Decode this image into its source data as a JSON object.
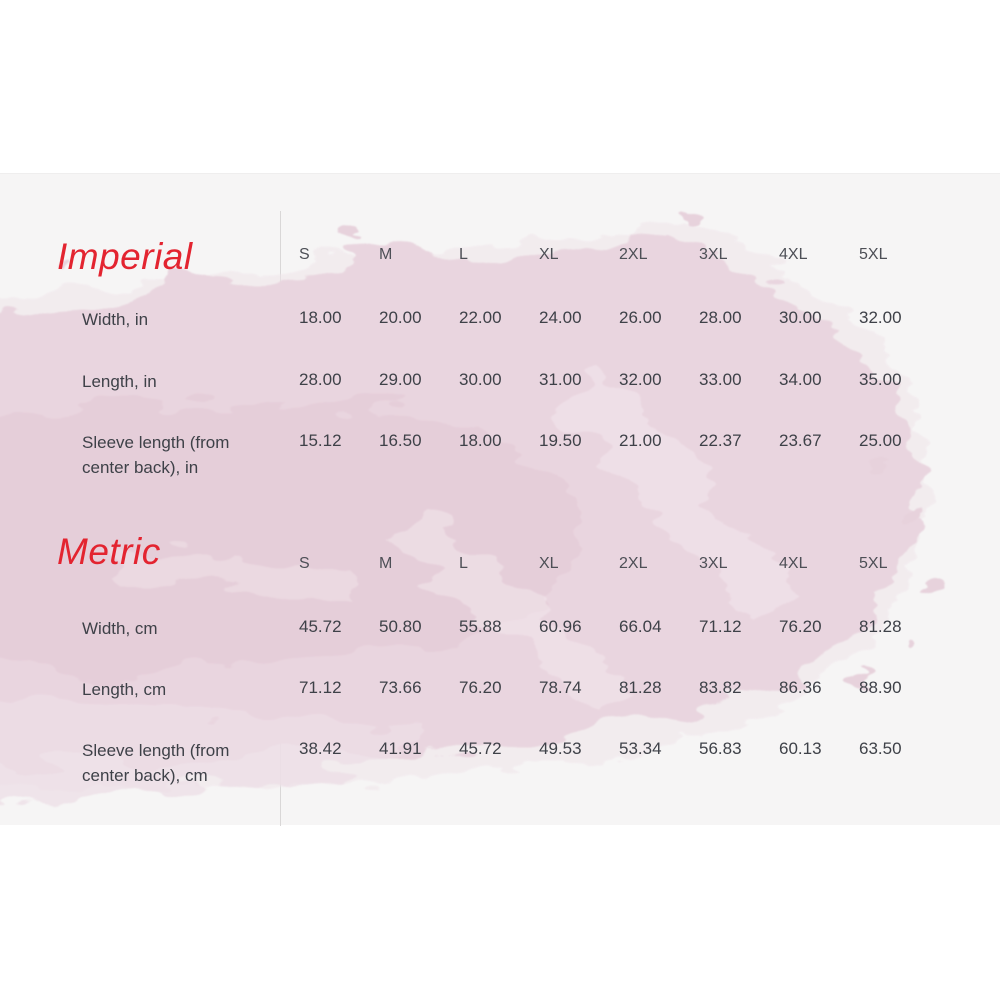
{
  "colors": {
    "page_background": "#ffffff",
    "panel_background": "#f6f5f5",
    "heading_red": "#e32430",
    "table_text": "#3e4148",
    "watercolor_pink": "#e9d5df",
    "divider_gray": "#d9d7d7"
  },
  "sections": [
    {
      "title": "Imperial",
      "sizes": [
        "S",
        "M",
        "L",
        "XL",
        "2XL",
        "3XL",
        "4XL",
        "5XL"
      ],
      "rows": [
        {
          "label": "Width, in",
          "values": [
            "18.00",
            "20.00",
            "22.00",
            "24.00",
            "26.00",
            "28.00",
            "30.00",
            "32.00"
          ]
        },
        {
          "label": "Length, in",
          "values": [
            "28.00",
            "29.00",
            "30.00",
            "31.00",
            "32.00",
            "33.00",
            "34.00",
            "35.00"
          ]
        },
        {
          "label": "Sleeve length (from center back), in",
          "values": [
            "15.12",
            "16.50",
            "18.00",
            "19.50",
            "21.00",
            "22.37",
            "23.67",
            "25.00"
          ]
        }
      ]
    },
    {
      "title": "Metric",
      "sizes": [
        "S",
        "M",
        "L",
        "XL",
        "2XL",
        "3XL",
        "4XL",
        "5XL"
      ],
      "rows": [
        {
          "label": "Width, cm",
          "values": [
            "45.72",
            "50.80",
            "55.88",
            "60.96",
            "66.04",
            "71.12",
            "76.20",
            "81.28"
          ]
        },
        {
          "label": "Length, cm",
          "values": [
            "71.12",
            "73.66",
            "76.20",
            "78.74",
            "81.28",
            "83.82",
            "86.36",
            "88.90"
          ]
        },
        {
          "label": "Sleeve length (from center back), cm",
          "values": [
            "38.42",
            "41.91",
            "45.72",
            "49.53",
            "53.34",
            "56.83",
            "60.13",
            "63.50"
          ]
        }
      ]
    }
  ],
  "chart_data": [
    {
      "type": "table",
      "title": "Imperial",
      "columns": [
        "",
        "S",
        "M",
        "L",
        "XL",
        "2XL",
        "3XL",
        "4XL",
        "5XL"
      ],
      "rows": [
        [
          "Width, in",
          18.0,
          20.0,
          22.0,
          24.0,
          26.0,
          28.0,
          30.0,
          32.0
        ],
        [
          "Length, in",
          28.0,
          29.0,
          30.0,
          31.0,
          32.0,
          33.0,
          34.0,
          35.0
        ],
        [
          "Sleeve length (from center back), in",
          15.12,
          16.5,
          18.0,
          19.5,
          21.0,
          22.37,
          23.67,
          25.0
        ]
      ]
    },
    {
      "type": "table",
      "title": "Metric",
      "columns": [
        "",
        "S",
        "M",
        "L",
        "XL",
        "2XL",
        "3XL",
        "4XL",
        "5XL"
      ],
      "rows": [
        [
          "Width, cm",
          45.72,
          50.8,
          55.88,
          60.96,
          66.04,
          71.12,
          76.2,
          81.28
        ],
        [
          "Length, cm",
          71.12,
          73.66,
          76.2,
          78.74,
          81.28,
          83.82,
          86.36,
          88.9
        ],
        [
          "Sleeve length (from center back), cm",
          38.42,
          41.91,
          45.72,
          49.53,
          53.34,
          56.83,
          60.13,
          63.5
        ]
      ]
    }
  ]
}
